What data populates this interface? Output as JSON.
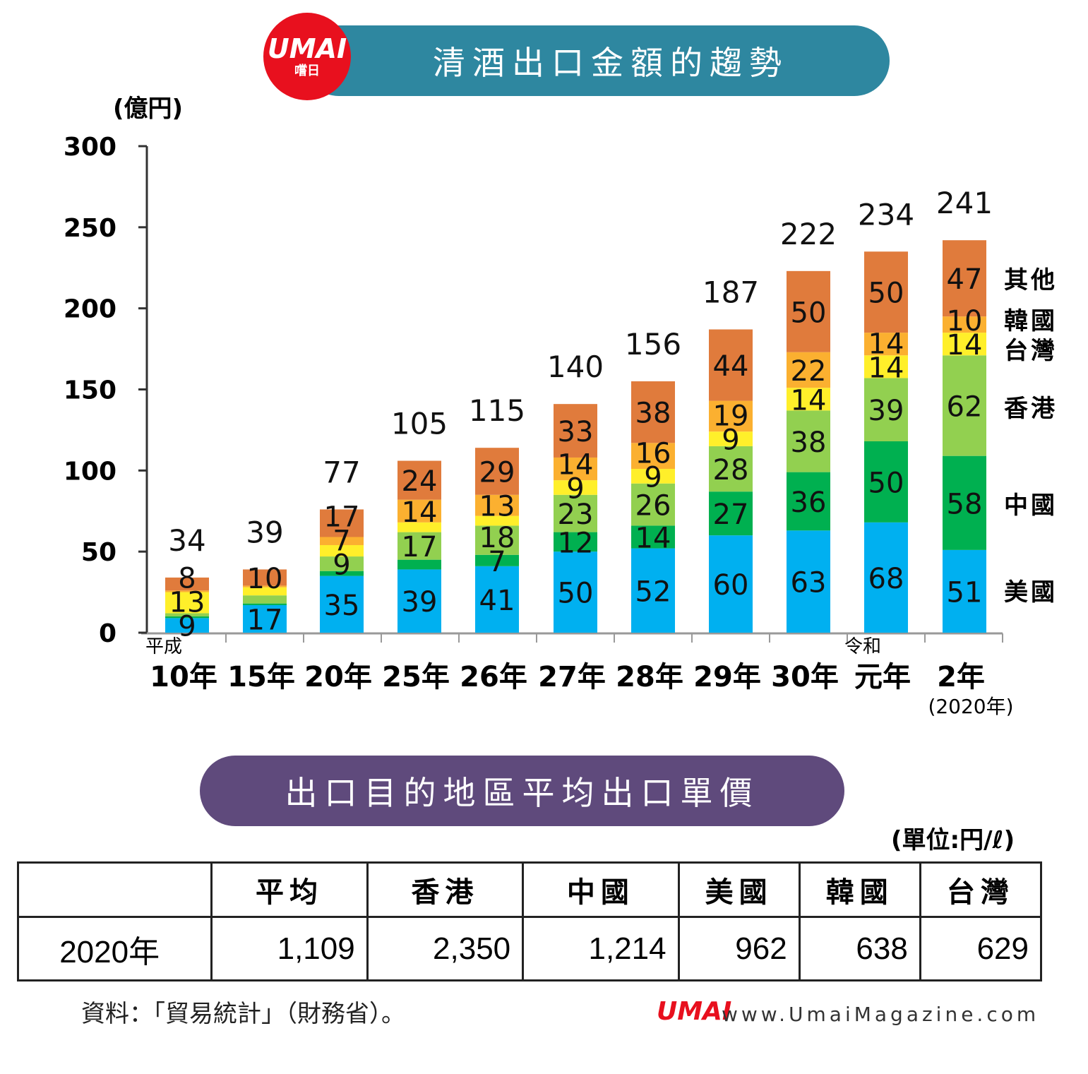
{
  "header": {
    "logo_text": "UMAI",
    "logo_sub": "嚐日",
    "title": "清酒出口金額的趨勢"
  },
  "chart_data": {
    "type": "bar",
    "stacked": true,
    "title": "清酒出口金額的趨勢",
    "ylabel": "(億円)",
    "ylim": [
      0,
      300
    ],
    "yticks": [
      0,
      50,
      100,
      150,
      200,
      250,
      300
    ],
    "era_labels": {
      "heisei": "平成",
      "reiwa": "令和"
    },
    "categories": [
      "10年",
      "15年",
      "20年",
      "25年",
      "26年",
      "27年",
      "28年",
      "29年",
      "30年",
      "元年",
      "2年"
    ],
    "x_note": "(2020年)",
    "totals": [
      34,
      39,
      77,
      105,
      115,
      140,
      156,
      187,
      222,
      234,
      241
    ],
    "series": [
      {
        "name": "美國",
        "color": "#00b0f0",
        "values": [
          9,
          17,
          35,
          39,
          41,
          50,
          52,
          60,
          63,
          68,
          51
        ],
        "labels": [
          "9",
          "17",
          "35",
          "39",
          "41",
          "50",
          "52",
          "60",
          "63",
          "68",
          "51"
        ]
      },
      {
        "name": "中國",
        "color": "#00b050",
        "values": [
          1,
          1,
          3,
          6,
          7,
          12,
          14,
          27,
          36,
          50,
          58
        ],
        "labels": [
          "",
          "",
          "",
          "",
          "7",
          "12",
          "14",
          "27",
          "36",
          "50",
          "58"
        ]
      },
      {
        "name": "香港",
        "color": "#92d050",
        "values": [
          2,
          5,
          9,
          17,
          18,
          23,
          26,
          28,
          38,
          39,
          62
        ],
        "labels": [
          "",
          "",
          "9",
          "17",
          "18",
          "23",
          "26",
          "28",
          "38",
          "39",
          "62"
        ]
      },
      {
        "name": "台灣",
        "color": "#ffef2a",
        "values": [
          13,
          5,
          7,
          6,
          6,
          9,
          9,
          9,
          14,
          14,
          14
        ],
        "labels": [
          "13",
          "",
          "7",
          "",
          "",
          "9",
          "9",
          "9",
          "14",
          "14",
          "14"
        ]
      },
      {
        "name": "韓國",
        "color": "#fbb030",
        "values": [
          1,
          1,
          5,
          14,
          13,
          14,
          16,
          19,
          22,
          14,
          10
        ],
        "labels": [
          "",
          "",
          "",
          "14",
          "13",
          "14",
          "16",
          "19",
          "22",
          "14",
          "10"
        ]
      },
      {
        "name": "其他",
        "color": "#e07b3c",
        "values": [
          8,
          10,
          17,
          24,
          29,
          33,
          38,
          44,
          50,
          50,
          47
        ],
        "labels": [
          "8",
          "10",
          "17",
          "24",
          "29",
          "33",
          "38",
          "44",
          "50",
          "50",
          "47"
        ]
      }
    ],
    "legend_placement": "right"
  },
  "table_section": {
    "title": "出口目的地區平均出口單價",
    "unit": "(單位:円/ℓ)",
    "headers": [
      "",
      "平均",
      "香港",
      "中國",
      "美國",
      "韓國",
      "台灣"
    ],
    "rows": [
      [
        "2020年",
        "1,109",
        "2,350",
        "1,214",
        "962",
        "638",
        "629"
      ]
    ]
  },
  "footer": {
    "source": "資料：「貿易統計」（財務省）。",
    "site": "www.UmaiMagazine.com",
    "logo_text": "UMAI"
  }
}
